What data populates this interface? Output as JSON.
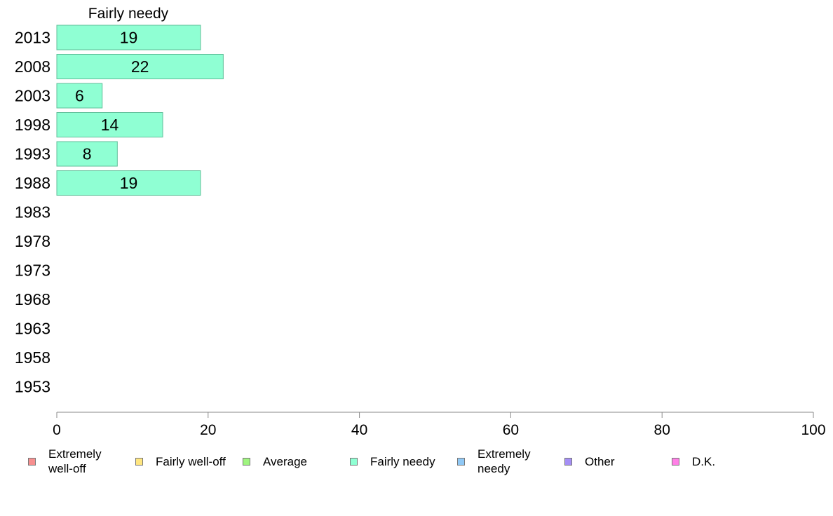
{
  "chart_data": {
    "type": "bar",
    "orientation": "horizontal",
    "title": "Fairly needy",
    "categories": [
      "2013",
      "2008",
      "2003",
      "1998",
      "1993",
      "1988",
      "1983",
      "1978",
      "1973",
      "1968",
      "1963",
      "1958",
      "1953"
    ],
    "series": [
      {
        "name": "Fairly needy",
        "values": [
          19,
          22,
          6,
          14,
          8,
          19,
          null,
          null,
          null,
          null,
          null,
          null,
          null
        ]
      }
    ],
    "xlim": [
      0,
      100
    ],
    "xticks": [
      0,
      20,
      40,
      60,
      80,
      100
    ],
    "grid": false,
    "bar_color": "#8fffd3",
    "bar_border_color": "#5fbf99",
    "axis_color": "#888888",
    "legend_position": "bottom",
    "legend": [
      {
        "label": "Extremely well-off",
        "color": "#f78f8f"
      },
      {
        "label": "Fairly well-off",
        "color": "#ffe680"
      },
      {
        "label": "Average",
        "color": "#9ff57f"
      },
      {
        "label": "Fairly needy",
        "color": "#8fffd3"
      },
      {
        "label": "Extremely needy",
        "color": "#8fc8f5"
      },
      {
        "label": "Other",
        "color": "#a58ff5"
      },
      {
        "label": "D.K.",
        "color": "#ff7fe6"
      }
    ]
  }
}
